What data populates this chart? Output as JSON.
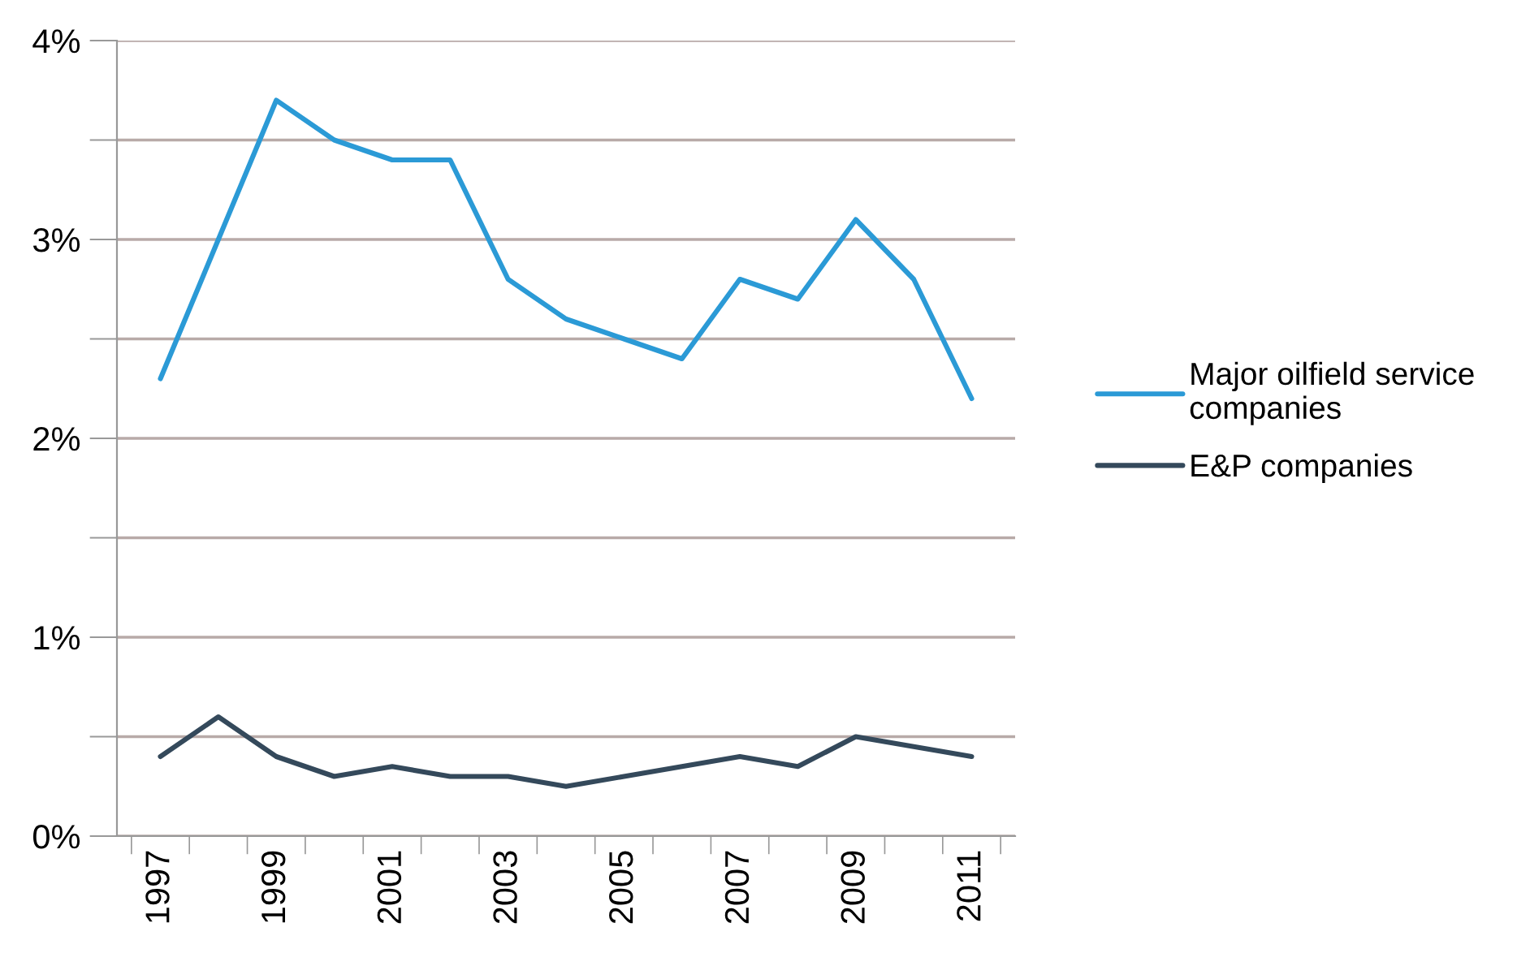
{
  "chart_data": {
    "type": "line",
    "categories": [
      "1997",
      null,
      "1999",
      null,
      "2001",
      null,
      "2003",
      null,
      "2005",
      null,
      "2007",
      null,
      "2009",
      null,
      "2011"
    ],
    "series": [
      {
        "name": "Major oilfield service companies",
        "color": "#2b9ad6",
        "values": [
          2.3,
          3.0,
          3.7,
          3.5,
          3.4,
          3.4,
          2.8,
          2.6,
          2.5,
          2.4,
          2.8,
          2.7,
          3.1,
          2.8,
          2.2
        ]
      },
      {
        "name": "E&P companies",
        "color": "#34495b",
        "values": [
          0.4,
          0.6,
          0.4,
          0.3,
          0.35,
          0.3,
          0.3,
          0.25,
          0.3,
          0.35,
          0.4,
          0.35,
          0.5,
          0.45,
          0.4
        ]
      }
    ],
    "ylim": [
      0,
      4
    ],
    "yticks": [
      {
        "value": 0,
        "label": "0%"
      },
      {
        "value": 0.5,
        "label": null
      },
      {
        "value": 1,
        "label": "1%"
      },
      {
        "value": 1.5,
        "label": null
      },
      {
        "value": 2,
        "label": "2%"
      },
      {
        "value": 2.5,
        "label": null
      },
      {
        "value": 3,
        "label": "3%"
      },
      {
        "value": 3.5,
        "label": null
      },
      {
        "value": 4,
        "label": "4%"
      }
    ],
    "grid": "y",
    "legend": "right",
    "marker": "none",
    "line_style": "solid"
  }
}
